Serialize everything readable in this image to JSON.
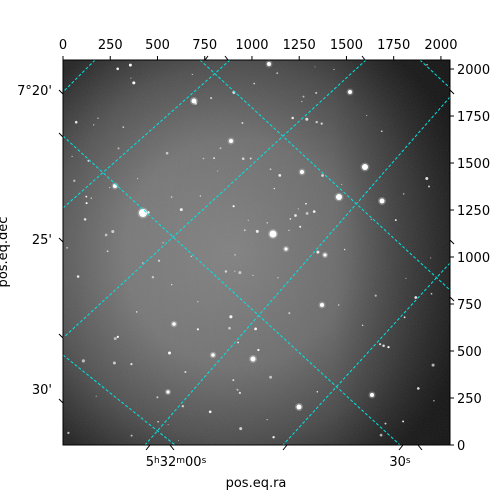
{
  "figure": {
    "xlabel": "pos.eq.ra",
    "ylabel": "pos.eq.dec",
    "colormap": "grayscale",
    "grid_color": "#00e5e5",
    "grid_style": "dashed"
  },
  "chart_data": {
    "type": "other",
    "pixel_axes": {
      "top_ticks": [
        "0",
        "250",
        "500",
        "750",
        "1000",
        "1250",
        "1500",
        "1750",
        "2000"
      ],
      "top_values": [
        0,
        250,
        500,
        750,
        1000,
        1250,
        1500,
        1750,
        2000
      ],
      "right_ticks": [
        "0",
        "250",
        "500",
        "750",
        "1000",
        "1250",
        "1500",
        "1750",
        "2000"
      ],
      "right_values": [
        0,
        250,
        500,
        750,
        1000,
        1250,
        1500,
        1750,
        2000
      ],
      "xlim": [
        0,
        2048
      ],
      "ylim": [
        0,
        2048
      ]
    },
    "world_axes": {
      "ra_tick_labels": [
        "5h32m00s",
        "30s"
      ],
      "dec_tick_labels": [
        "7°20'",
        "25'",
        "30'"
      ]
    }
  }
}
